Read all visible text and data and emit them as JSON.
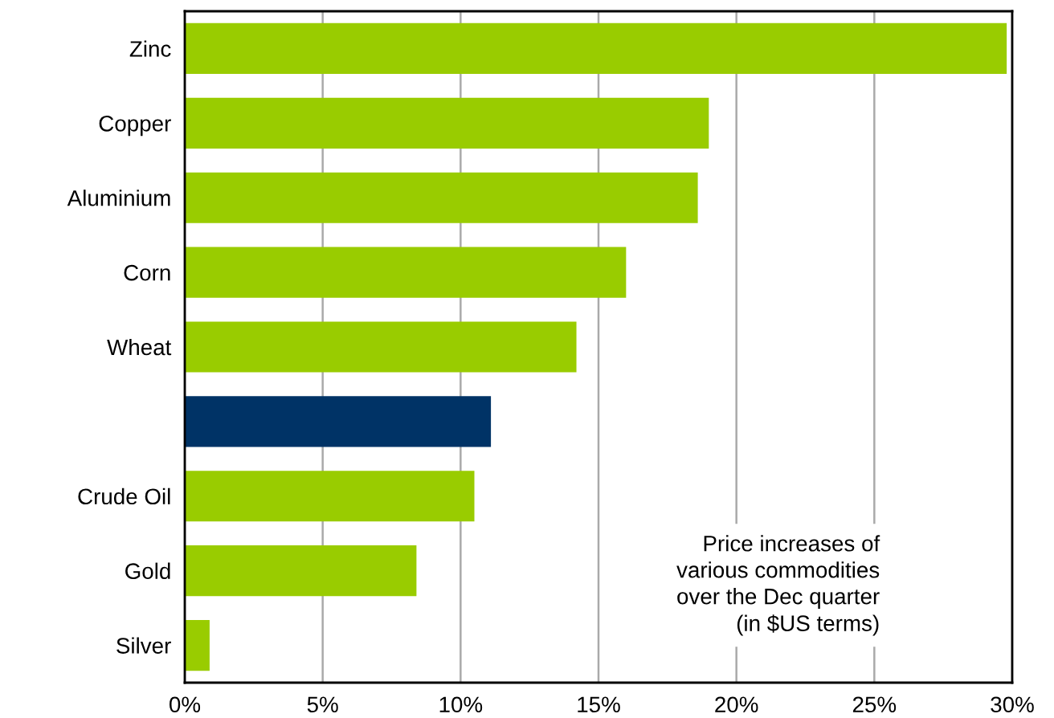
{
  "chart_data": {
    "type": "bar",
    "orientation": "horizontal",
    "categories": [
      "Zinc",
      "Copper",
      "Aluminium",
      "Corn",
      "Wheat",
      null,
      "Crude Oil",
      "Gold",
      "Silver"
    ],
    "values": [
      29.8,
      19.0,
      18.6,
      16.0,
      14.2,
      11.1,
      10.5,
      8.4,
      0.9
    ],
    "colors": [
      "#99cc00",
      "#99cc00",
      "#99cc00",
      "#99cc00",
      "#99cc00",
      "#003366",
      "#99cc00",
      "#99cc00",
      "#99cc00"
    ],
    "xlim": [
      0,
      30
    ],
    "xticks": [
      {
        "value": 0,
        "label": "0%"
      },
      {
        "value": 5,
        "label": "5%"
      },
      {
        "value": 10,
        "label": "10%"
      },
      {
        "value": 15,
        "label": "15%"
      },
      {
        "value": 20,
        "label": "20%"
      },
      {
        "value": 25,
        "label": "25%"
      },
      {
        "value": 30,
        "label": "30%"
      }
    ],
    "grid": "x",
    "annotations": [
      "Price increases of\nvarious commodities\nover the Dec quarter\n(in $US terms)"
    ]
  }
}
